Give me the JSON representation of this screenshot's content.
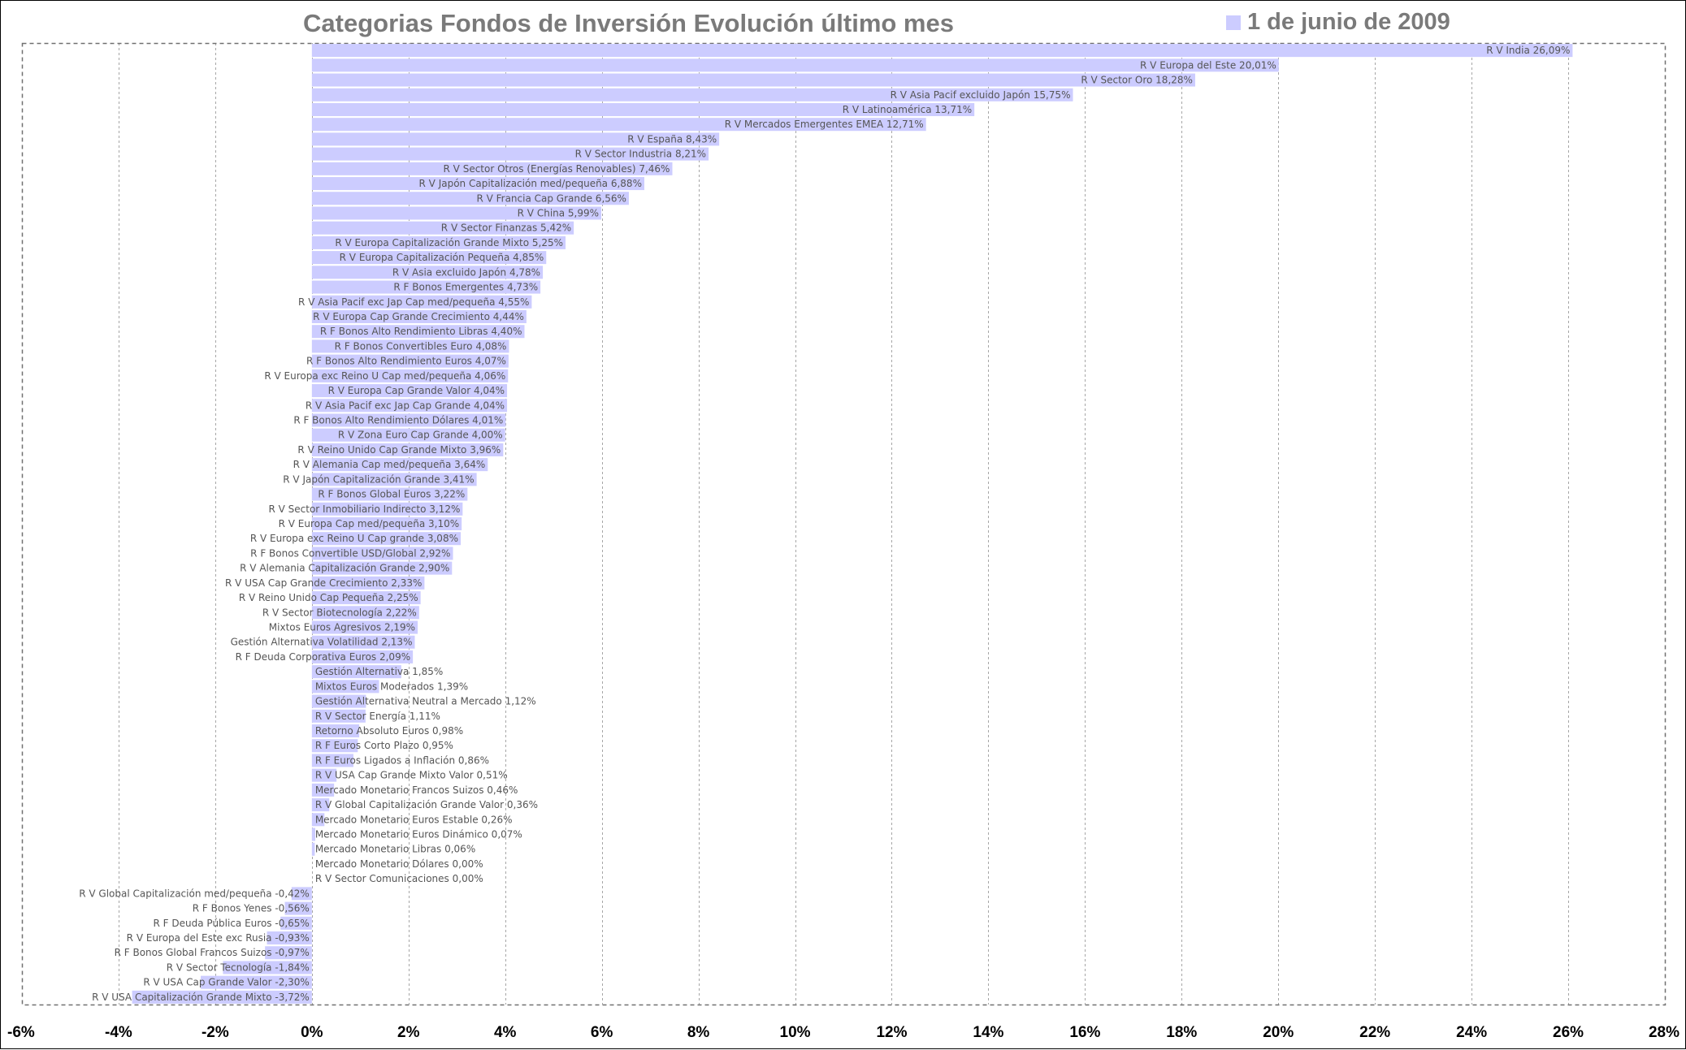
{
  "chart_data": {
    "type": "bar",
    "orientation": "horizontal",
    "title": "Categorias Fondos de Inversión Evolución último mes",
    "legend_position": "top-right",
    "series": [
      {
        "name": "1 de junio de 2009",
        "color": "#ccccff"
      }
    ],
    "grid": true,
    "xlim": [
      -6,
      28
    ],
    "xticks": [
      -6,
      -4,
      -2,
      0,
      2,
      4,
      6,
      8,
      10,
      12,
      14,
      16,
      18,
      20,
      22,
      24,
      26,
      28
    ],
    "xtick_labels": [
      "-6%",
      "-4%",
      "-2%",
      "0%",
      "2%",
      "4%",
      "6%",
      "8%",
      "10%",
      "12%",
      "14%",
      "16%",
      "18%",
      "20%",
      "22%",
      "24%",
      "26%",
      "28%"
    ],
    "bars": [
      {
        "category": "R V India",
        "value": 26.09,
        "label": "R V India 26,09%"
      },
      {
        "category": "R V Europa del Este",
        "value": 20.01,
        "label": "R V Europa del Este 20,01%"
      },
      {
        "category": "R V Sector Oro",
        "value": 18.28,
        "label": "R V Sector Oro 18,28%"
      },
      {
        "category": "R V Asia Pacif excluido Japón",
        "value": 15.75,
        "label": "R V Asia Pacif excluido Japón 15,75%"
      },
      {
        "category": "R V Latinoamérica",
        "value": 13.71,
        "label": "R V Latinoamérica 13,71%"
      },
      {
        "category": "R V Mercados Emergentes EMEA",
        "value": 12.71,
        "label": "R V Mercados Emergentes EMEA 12,71%"
      },
      {
        "category": "R V España",
        "value": 8.43,
        "label": "R V España 8,43%"
      },
      {
        "category": "R V Sector Industria",
        "value": 8.21,
        "label": "R V Sector Industria 8,21%"
      },
      {
        "category": "R V Sector Otros (Energías Renovables)",
        "value": 7.46,
        "label": "R V Sector Otros (Energías Renovables) 7,46%"
      },
      {
        "category": "R V Japón Capitalización med/pequeña",
        "value": 6.88,
        "label": "R V Japón Capitalización med/pequeña 6,88%"
      },
      {
        "category": "R V Francia Cap Grande",
        "value": 6.56,
        "label": "R V Francia Cap Grande 6,56%"
      },
      {
        "category": "R V China",
        "value": 5.99,
        "label": "R V China 5,99%"
      },
      {
        "category": "R V Sector Finanzas",
        "value": 5.42,
        "label": "R V Sector Finanzas 5,42%"
      },
      {
        "category": "R V Europa Capitalización Grande Mixto",
        "value": 5.25,
        "label": "R V Europa Capitalización Grande Mixto 5,25%"
      },
      {
        "category": "R V Europa Capitalización Pequeña",
        "value": 4.85,
        "label": "R V Europa Capitalización Pequeña 4,85%"
      },
      {
        "category": "R V Asia excluido Japón",
        "value": 4.78,
        "label": "R V Asia excluido Japón 4,78%"
      },
      {
        "category": "R F Bonos Emergentes",
        "value": 4.73,
        "label": "R F Bonos Emergentes 4,73%"
      },
      {
        "category": "R V Asia Pacif exc Jap Cap med/pequeña",
        "value": 4.55,
        "label": "R V Asia Pacif exc Jap Cap med/pequeña 4,55%"
      },
      {
        "category": "R V Europa Cap Grande Crecimiento",
        "value": 4.44,
        "label": "R V Europa Cap Grande Crecimiento 4,44%"
      },
      {
        "category": "R F Bonos Alto Rendimiento Libras",
        "value": 4.4,
        "label": "R F Bonos Alto Rendimiento Libras 4,40%"
      },
      {
        "category": "R F Bonos Convertibles Euro",
        "value": 4.08,
        "label": "R F Bonos Convertibles Euro 4,08%"
      },
      {
        "category": "R F Bonos Alto Rendimiento Euros",
        "value": 4.07,
        "label": "R F Bonos Alto Rendimiento Euros 4,07%"
      },
      {
        "category": "R V Europa exc Reino U Cap med/pequeña",
        "value": 4.06,
        "label": "R V Europa exc Reino U Cap med/pequeña 4,06%"
      },
      {
        "category": "R V Europa Cap Grande Valor",
        "value": 4.04,
        "label": "R V Europa Cap Grande Valor 4,04%"
      },
      {
        "category": "R V Asia Pacif exc Jap Cap Grande",
        "value": 4.04,
        "label": "R V Asia Pacif exc Jap Cap Grande 4,04%"
      },
      {
        "category": "R F Bonos Alto Rendimiento Dólares",
        "value": 4.01,
        "label": "R F Bonos Alto Rendimiento Dólares 4,01%"
      },
      {
        "category": "R V Zona Euro Cap Grande",
        "value": 4.0,
        "label": "R V Zona Euro Cap Grande 4,00%"
      },
      {
        "category": "R V Reino Unido Cap Grande Mixto",
        "value": 3.96,
        "label": "R V Reino Unido Cap Grande Mixto 3,96%"
      },
      {
        "category": "R V Alemania Cap med/pequeña",
        "value": 3.64,
        "label": "R V Alemania Cap med/pequeña 3,64%"
      },
      {
        "category": "R V Japón Capitalización Grande",
        "value": 3.41,
        "label": "R V Japón Capitalización Grande 3,41%"
      },
      {
        "category": "R F Bonos Global Euros",
        "value": 3.22,
        "label": "R F Bonos Global Euros 3,22%"
      },
      {
        "category": "R V Sector Inmobiliario Indirecto",
        "value": 3.12,
        "label": "R V Sector Inmobiliario Indirecto 3,12%"
      },
      {
        "category": "R V Europa Cap med/pequeña",
        "value": 3.1,
        "label": "R V Europa Cap med/pequeña 3,10%"
      },
      {
        "category": "R V Europa exc Reino U Cap grande",
        "value": 3.08,
        "label": "R V Europa exc Reino U Cap grande 3,08%"
      },
      {
        "category": "R F Bonos Convertible USD/Global",
        "value": 2.92,
        "label": "R F Bonos Convertible USD/Global 2,92%"
      },
      {
        "category": "R V Alemania Capitalización Grande",
        "value": 2.9,
        "label": "R V Alemania Capitalización Grande 2,90%"
      },
      {
        "category": "R V USA Cap Grande Crecimiento",
        "value": 2.33,
        "label": "R V USA Cap Grande Crecimiento 2,33%"
      },
      {
        "category": "R V Reino Unido Cap Pequeña",
        "value": 2.25,
        "label": "R V Reino Unido Cap Pequeña 2,25%"
      },
      {
        "category": "R V Sector Biotecnología",
        "value": 2.22,
        "label": "R V Sector Biotecnología 2,22%"
      },
      {
        "category": "Mixtos Euros Agresivos",
        "value": 2.19,
        "label": "Mixtos Euros Agresivos 2,19%"
      },
      {
        "category": "Gestión Alternativa Volatilidad",
        "value": 2.13,
        "label": "Gestión Alternativa Volatilidad 2,13%"
      },
      {
        "category": "R F Deuda Corporativa Euros",
        "value": 2.09,
        "label": "R F Deuda Corporativa Euros 2,09%"
      },
      {
        "category": "Gestión Alternativa",
        "value": 1.85,
        "label": "Gestión Alternativa 1,85%"
      },
      {
        "category": "Mixtos Euros Moderados",
        "value": 1.39,
        "label": "Mixtos Euros Moderados 1,39%"
      },
      {
        "category": "Gestión Alternativa Neutral a Mercado",
        "value": 1.12,
        "label": "Gestión Alternativa Neutral a Mercado 1,12%"
      },
      {
        "category": "R V Sector Energía",
        "value": 1.11,
        "label": "R V Sector Energía 1,11%"
      },
      {
        "category": "Retorno Absoluto Euros",
        "value": 0.98,
        "label": "Retorno Absoluto Euros 0,98%"
      },
      {
        "category": "R F Euros Corto Plazo",
        "value": 0.95,
        "label": "R F Euros Corto Plazo 0,95%"
      },
      {
        "category": "R F Euros Ligados a Inflación",
        "value": 0.86,
        "label": "R F Euros Ligados a Inflación 0,86%"
      },
      {
        "category": "R V USA Cap Grande Mixto Valor",
        "value": 0.51,
        "label": "R V USA Cap Grande Mixto Valor 0,51%"
      },
      {
        "category": "Mercado Monetario Francos Suizos",
        "value": 0.46,
        "label": "Mercado Monetario Francos Suizos 0,46%"
      },
      {
        "category": "R V Global Capitalización Grande Valor",
        "value": 0.36,
        "label": "R V Global Capitalización Grande Valor 0,36%"
      },
      {
        "category": "Mercado Monetario Euros Estable",
        "value": 0.26,
        "label": "Mercado Monetario Euros Estable 0,26%"
      },
      {
        "category": "Mercado Monetario Euros Dinámico",
        "value": 0.07,
        "label": "Mercado Monetario Euros Dinámico 0,07%"
      },
      {
        "category": "Mercado Monetario Libras",
        "value": 0.06,
        "label": "Mercado Monetario Libras 0,06%"
      },
      {
        "category": "Mercado Monetario Dólares",
        "value": 0.0,
        "label": "Mercado Monetario Dólares 0,00%"
      },
      {
        "category": "R V Sector Comunicaciones",
        "value": 0.0,
        "label": "R V Sector Comunicaciones 0,00%"
      },
      {
        "category": "R V Global Capitalización med/pequeña",
        "value": -0.42,
        "label": "R V Global Capitalización med/pequeña -0,42%"
      },
      {
        "category": "R F Bonos Yenes",
        "value": -0.56,
        "label": "R F Bonos Yenes -0,56%"
      },
      {
        "category": "R F Deuda Pública Euros",
        "value": -0.65,
        "label": "R F Deuda Pública Euros -0,65%"
      },
      {
        "category": "R V Europa del Este exc Rusia",
        "value": -0.93,
        "label": "R V Europa del Este exc Rusia -0,93%"
      },
      {
        "category": "R F Bonos Global Francos Suizos",
        "value": -0.97,
        "label": "R F Bonos Global Francos Suizos -0,97%"
      },
      {
        "category": "R V Sector Tecnología",
        "value": -1.84,
        "label": "R V Sector Tecnología -1,84%"
      },
      {
        "category": "R V USA Cap Grande Valor",
        "value": -2.3,
        "label": "R V USA Cap Grande Valor -2,30%"
      },
      {
        "category": "R V USA Capitalización Grande Mixto",
        "value": -3.72,
        "label": "R V USA Capitalización Grande Mixto -3,72%"
      }
    ]
  }
}
